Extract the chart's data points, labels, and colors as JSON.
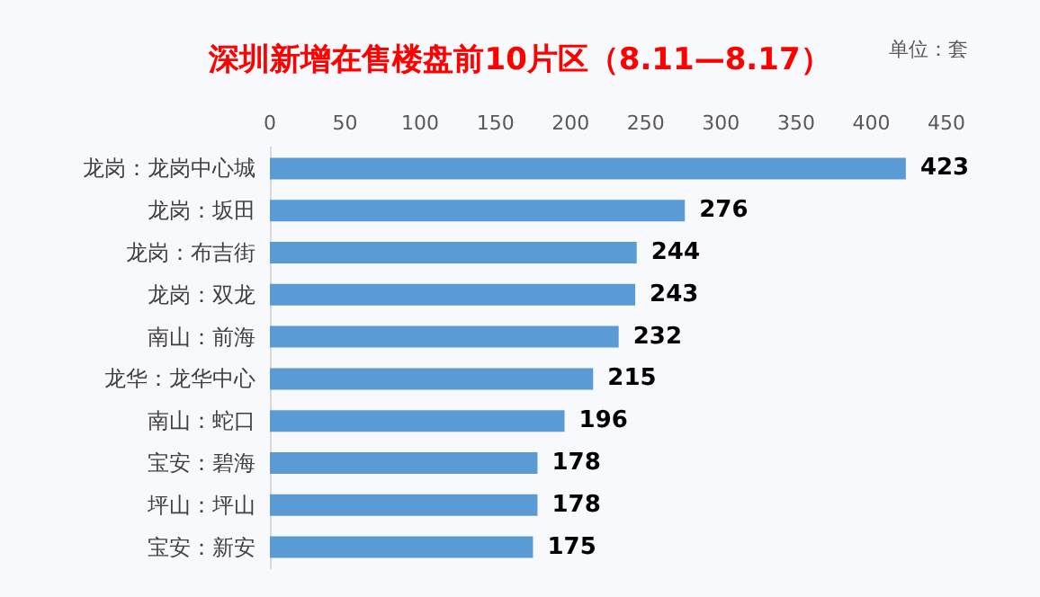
{
  "chart_data": {
    "type": "bar",
    "orientation": "horizontal",
    "title": "深圳新增在售楼盘前10片区（8.11—8.17）",
    "annotations": [
      "单位：套"
    ],
    "categories": [
      "龙岗：龙岗中心城",
      "龙岗：坂田",
      "龙岗：布吉街",
      "龙岗：双龙",
      "南山：前海",
      "龙华：龙华中心",
      "南山：蛇口",
      "宝安：碧海",
      "坪山：坪山",
      "宝安：新安"
    ],
    "values": [
      423,
      276,
      244,
      243,
      232,
      215,
      196,
      178,
      178,
      175
    ],
    "color": "#5b9bd5",
    "data_labels": true,
    "grid": false,
    "xlim": [
      0,
      450
    ],
    "xticks": [
      0,
      50,
      100,
      150,
      200,
      250,
      300,
      350,
      400,
      450
    ]
  }
}
